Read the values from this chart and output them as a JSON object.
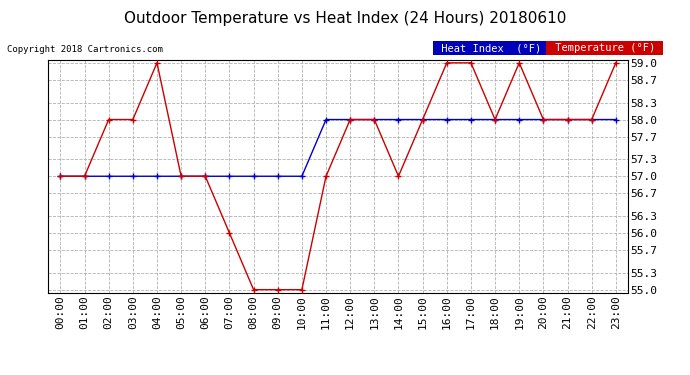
{
  "title": "Outdoor Temperature vs Heat Index (24 Hours) 20180610",
  "copyright_text": "Copyright 2018 Cartronics.com",
  "hours": [
    "00:00",
    "01:00",
    "02:00",
    "03:00",
    "04:00",
    "05:00",
    "06:00",
    "07:00",
    "08:00",
    "09:00",
    "10:00",
    "11:00",
    "12:00",
    "13:00",
    "14:00",
    "15:00",
    "16:00",
    "17:00",
    "18:00",
    "19:00",
    "20:00",
    "21:00",
    "22:00",
    "23:00"
  ],
  "temperature": [
    57.0,
    57.0,
    58.0,
    58.0,
    59.0,
    57.0,
    57.0,
    56.0,
    55.0,
    55.0,
    55.0,
    57.0,
    58.0,
    58.0,
    57.0,
    58.0,
    59.0,
    59.0,
    58.0,
    59.0,
    58.0,
    58.0,
    58.0,
    59.0
  ],
  "heat_index": [
    57.0,
    57.0,
    57.0,
    57.0,
    57.0,
    57.0,
    57.0,
    57.0,
    57.0,
    57.0,
    57.0,
    58.0,
    58.0,
    58.0,
    58.0,
    58.0,
    58.0,
    58.0,
    58.0,
    58.0,
    58.0,
    58.0,
    58.0,
    58.0
  ],
  "ylim_min": 55.0,
  "ylim_max": 59.0,
  "yticks": [
    55.0,
    55.3,
    55.7,
    56.0,
    56.3,
    56.7,
    57.0,
    57.3,
    57.7,
    58.0,
    58.3,
    58.7,
    59.0
  ],
  "temp_color": "#cc0000",
  "heat_index_color": "#0000cc",
  "background_color": "#ffffff",
  "plot_bg_color": "#ffffff",
  "grid_color": "#aaaaaa",
  "title_fontsize": 11,
  "axis_fontsize": 8,
  "legend_heat_index_bg": "#0000bb",
  "legend_temp_bg": "#cc0000",
  "legend_text_color": "#ffffff",
  "legend_heat_label": "Heat Index  (°F)",
  "legend_temp_label": "Temperature (°F)"
}
